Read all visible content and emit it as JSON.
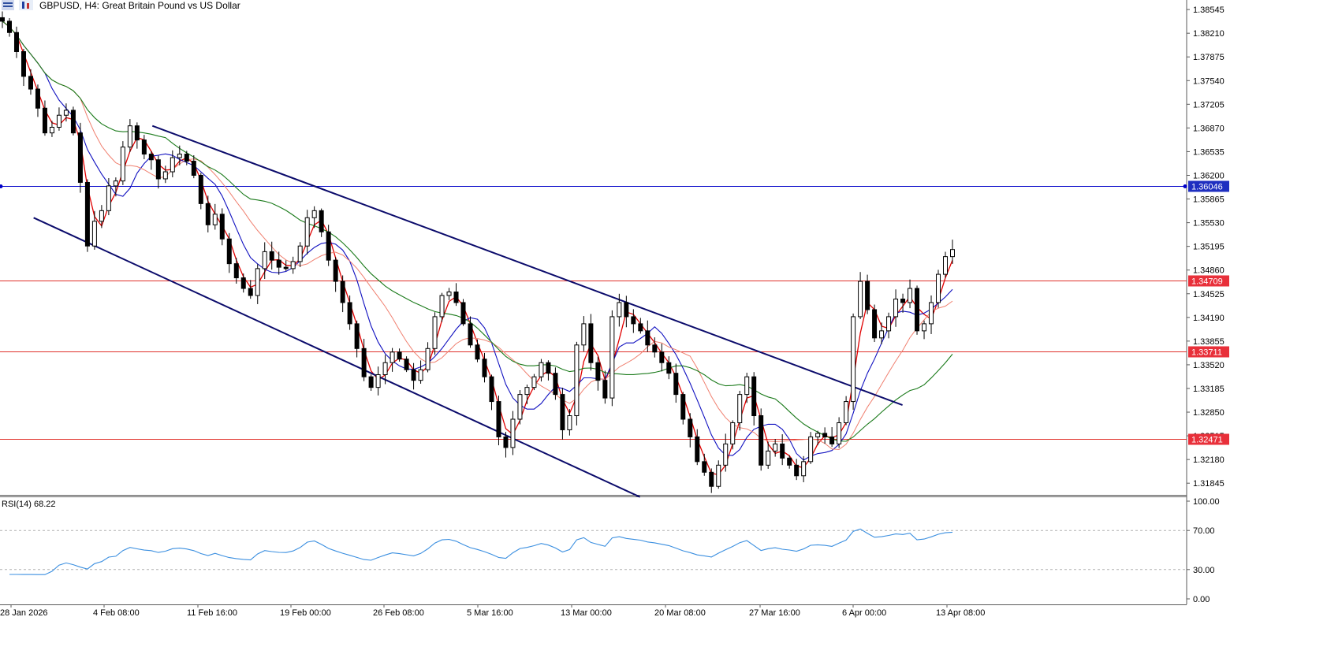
{
  "header": {
    "symbol_title": "GBPUSD, H4:  Great Britain Pound vs US Dollar"
  },
  "price_axis": {
    "labels": [
      "1.38545",
      "1.38210",
      "1.37875",
      "1.37540",
      "1.37205",
      "1.36870",
      "1.36535",
      "1.36200",
      "1.35865",
      "1.35530",
      "1.35195",
      "1.34860",
      "1.34525",
      "1.34190",
      "1.33855",
      "1.33520",
      "1.33185",
      "1.32850",
      "1.32515",
      "1.32180",
      "1.31845"
    ]
  },
  "levels": [
    {
      "name": "blue-line",
      "value": 1.36046,
      "label": "1.36046",
      "color": "#0000c8",
      "label_bg": "#1f2fc0"
    },
    {
      "name": "red-line-1",
      "value": 1.34709,
      "label": "1.34709",
      "color": "#e0302a",
      "label_bg": "#e8303a"
    },
    {
      "name": "red-line-2",
      "value": 1.33711,
      "label": "1.33711",
      "color": "#e0302a",
      "label_bg": "#e8303a"
    },
    {
      "name": "red-line-3",
      "value": 1.32471,
      "label": "1.32471",
      "color": "#e0302a",
      "label_bg": "#e8303a"
    }
  ],
  "time_axis": {
    "labels": [
      "28 Jan 2026",
      "4 Feb 08:00",
      "11 Feb 16:00",
      "19 Feb 00:00",
      "26 Feb 08:00",
      "5 Mar 16:00",
      "13 Mar 00:00",
      "20 Mar 08:00",
      "27 Mar 16:00",
      "6 Apr 00:00",
      "13 Apr 08:00"
    ]
  },
  "rsi": {
    "label": "RSI(14) 68.22",
    "axis_labels": [
      "100.00",
      "70.00",
      "30.00",
      "0.00"
    ],
    "color": "#3b8fe0"
  },
  "chart_data": {
    "type": "candlestick",
    "symbol": "GBPUSD",
    "timeframe": "H4",
    "ylim": [
      1.3168,
      1.3868
    ],
    "x_range": [
      "28 Jan 2026",
      "14 Apr 2026"
    ],
    "series": [
      {
        "kind": "close_path",
        "values": [
          1.3838,
          1.3822,
          1.3795,
          1.376,
          1.3742,
          1.3715,
          1.368,
          1.3688,
          1.3705,
          1.3712,
          1.368,
          1.361,
          1.352,
          1.3555,
          1.357,
          1.3605,
          1.3612,
          1.366,
          1.369,
          1.367,
          1.365,
          1.3642,
          1.3615,
          1.3625,
          1.3645,
          1.365,
          1.364,
          1.362,
          1.358,
          1.355,
          1.3565,
          1.353,
          1.3495,
          1.3475,
          1.346,
          1.345,
          1.3488,
          1.3512,
          1.35,
          1.349,
          1.3488,
          1.3498,
          1.352,
          1.356,
          1.357,
          1.354,
          1.35,
          1.347,
          1.344,
          1.341,
          1.3375,
          1.3335,
          1.332,
          1.3338,
          1.3355,
          1.337,
          1.336,
          1.3345,
          1.333,
          1.3345,
          1.3375,
          1.342,
          1.345,
          1.3455,
          1.344,
          1.341,
          1.338,
          1.336,
          1.3335,
          1.33,
          1.325,
          1.3235,
          1.3275,
          1.331,
          1.332,
          1.3335,
          1.3355,
          1.334,
          1.331,
          1.326,
          1.328,
          1.338,
          1.341,
          1.3355,
          1.333,
          1.3305,
          1.342,
          1.344,
          1.342,
          1.341,
          1.34,
          1.338,
          1.337,
          1.3355,
          1.334,
          1.331,
          1.3275,
          1.325,
          1.3215,
          1.32,
          1.318,
          1.321,
          1.324,
          1.327,
          1.331,
          1.3335,
          1.328,
          1.321,
          1.323,
          1.324,
          1.322,
          1.321,
          1.3195,
          1.3215,
          1.325,
          1.3255,
          1.325,
          1.324,
          1.327,
          1.33,
          1.342,
          1.347,
          1.343,
          1.339,
          1.34,
          1.342,
          1.3445,
          1.344,
          1.346,
          1.34,
          1.341,
          1.344,
          1.348,
          1.3505,
          1.3515
        ]
      },
      {
        "name": "",
        "kind": "moving_average",
        "color": "#e00000"
      },
      {
        "name": "",
        "kind": "moving_average",
        "color": "#1010c0"
      },
      {
        "name": "",
        "kind": "moving_average",
        "color": "#f08070"
      },
      {
        "name": "",
        "kind": "moving_average",
        "color": "#1a7a1a"
      }
    ],
    "channel": {
      "upper": [
        [
          "9 Feb",
          1.369
        ],
        [
          "10 Apr",
          1.3295
        ]
      ],
      "lower": [
        [
          "30 Jan",
          1.356
        ],
        [
          "20 Mar",
          1.3165
        ]
      ]
    },
    "rsi_ylim": [
      0,
      100
    ],
    "rsi_levels": [
      70,
      30
    ],
    "rsi_last": 68.22
  }
}
